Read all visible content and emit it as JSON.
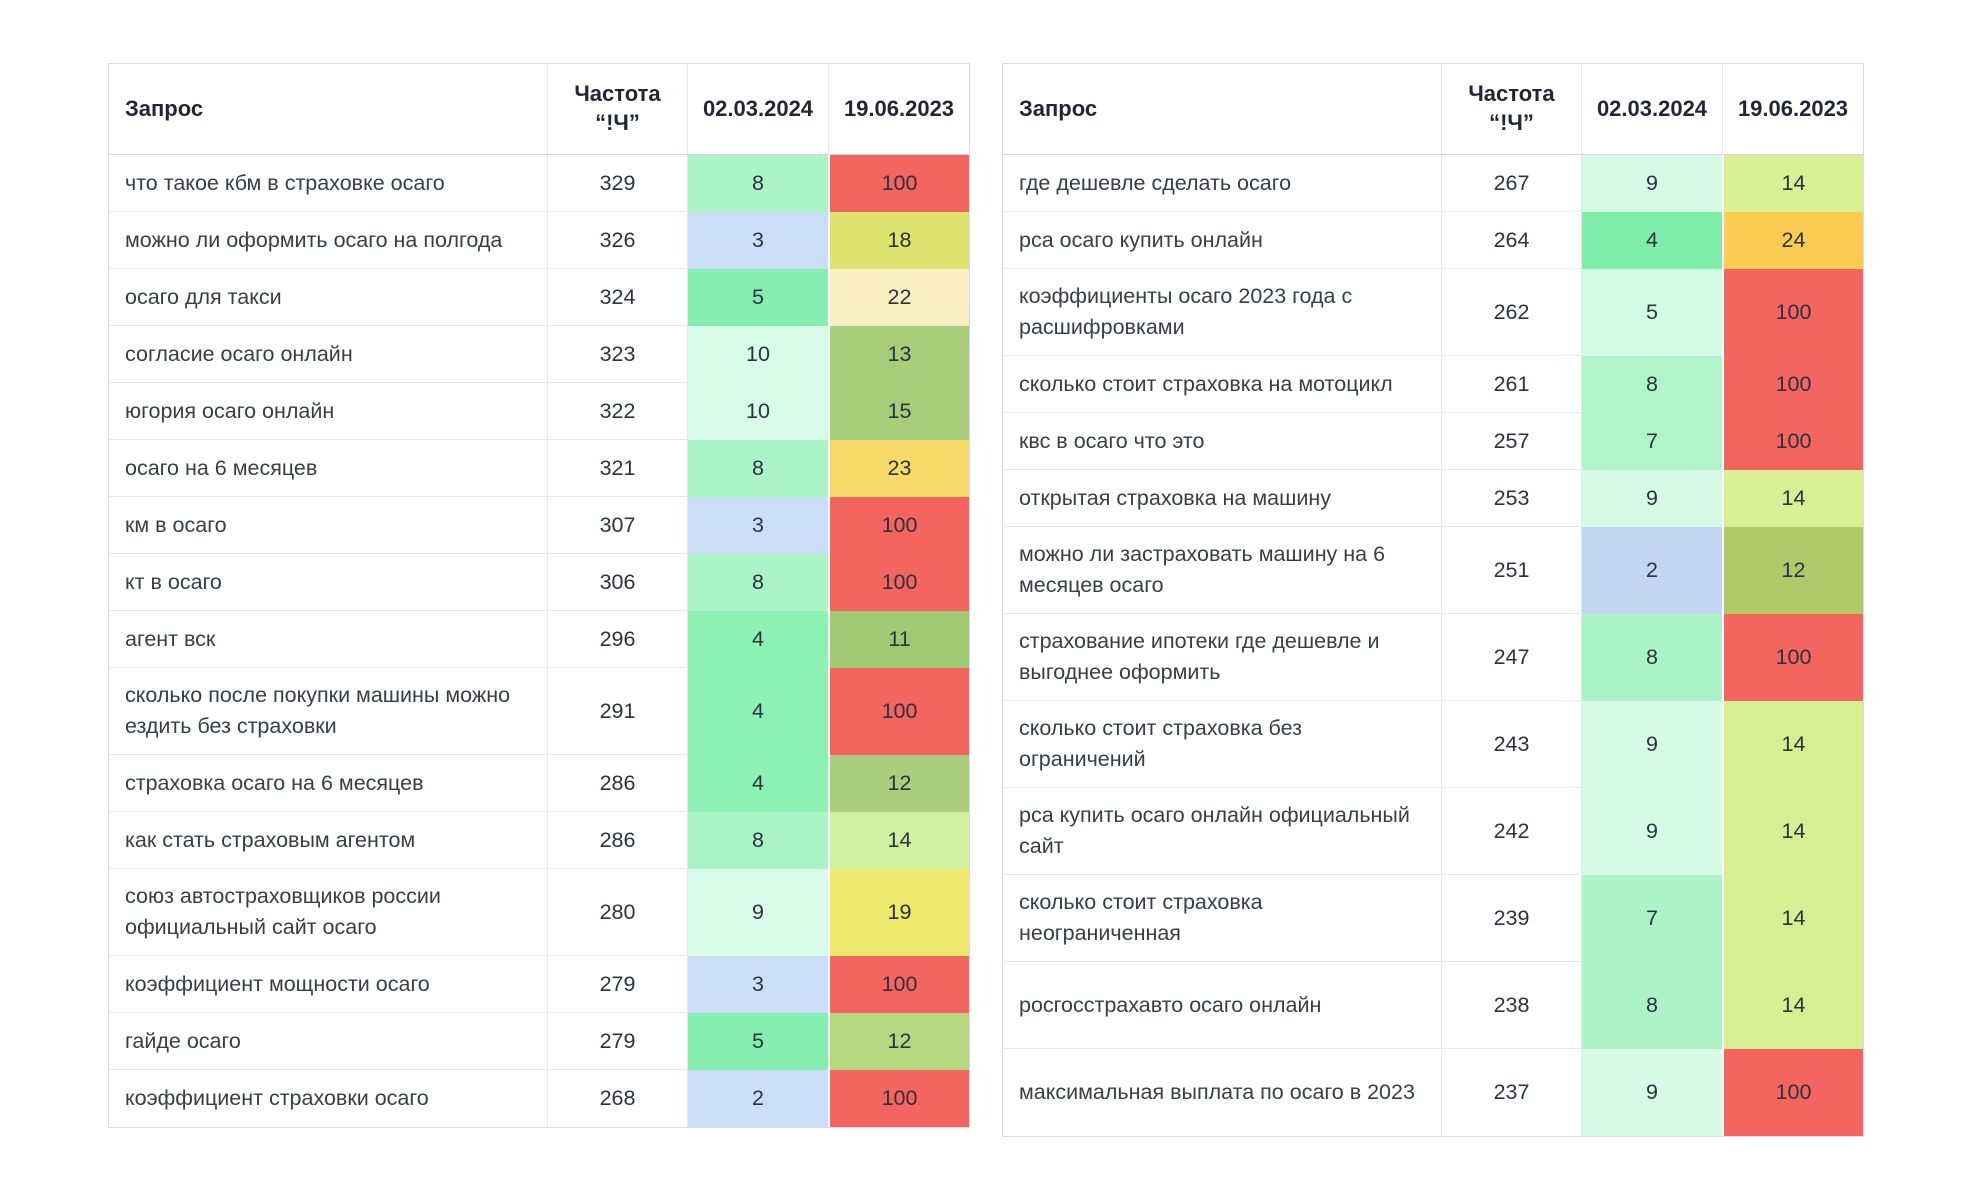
{
  "chart_data": [
    {
      "type": "table",
      "columns": [
        "Запрос",
        "Частота\n“!Ч”",
        "02.03.2024",
        "19.06.2023"
      ],
      "rows": [
        {
          "query": "что такое кбм в страховке осаго",
          "freq": "329",
          "d1": {
            "value": "8",
            "color": "#abf4c7"
          },
          "d2": {
            "value": "100",
            "color": "#f5655f"
          }
        },
        {
          "query": "можно ли оформить осаго на полгода",
          "freq": "326",
          "d1": {
            "value": "3",
            "color": "#ccddf8"
          },
          "d2": {
            "value": "18",
            "color": "#dee26e"
          }
        },
        {
          "query": "осаго для такси",
          "freq": "324",
          "d1": {
            "value": "5",
            "color": "#85efaf"
          },
          "d2": {
            "value": "22",
            "color": "#f9eec1"
          }
        },
        {
          "query": "согласие осаго онлайн",
          "freq": "323",
          "d1": {
            "value": "10",
            "color": "#d8fae8"
          },
          "d2": {
            "value": "13",
            "color": "#a7cc7a"
          }
        },
        {
          "query": "югория осаго онлайн",
          "freq": "322",
          "d1": {
            "value": "10",
            "color": "#d8fae8"
          },
          "d2": {
            "value": "15",
            "color": "#a7cc7a"
          }
        },
        {
          "query": "осаго на 6 месяцев",
          "freq": "321",
          "d1": {
            "value": "8",
            "color": "#abf4c7"
          },
          "d2": {
            "value": "23",
            "color": "#f8da6b"
          }
        },
        {
          "query": "км в осаго",
          "freq": "307",
          "d1": {
            "value": "3",
            "color": "#ccddf8"
          },
          "d2": {
            "value": "100",
            "color": "#f5655f"
          }
        },
        {
          "query": "кт в осаго",
          "freq": "306",
          "d1": {
            "value": "8",
            "color": "#abf4c7"
          },
          "d2": {
            "value": "100",
            "color": "#f5655f"
          }
        },
        {
          "query": "агент вск",
          "freq": "296",
          "d1": {
            "value": "4",
            "color": "#8df1b4"
          },
          "d2": {
            "value": "11",
            "color": "#a0c973"
          }
        },
        {
          "query": "сколько после покупки машины можно ездить без страховки",
          "freq": "291",
          "d1": {
            "value": "4",
            "color": "#8df1b4"
          },
          "d2": {
            "value": "100",
            "color": "#f5655f"
          }
        },
        {
          "query": "страховка осаго на 6 месяцев",
          "freq": "286",
          "d1": {
            "value": "4",
            "color": "#8df1b4"
          },
          "d2": {
            "value": "12",
            "color": "#a9ce7d"
          }
        },
        {
          "query": "как стать страховым агентом",
          "freq": "286",
          "d1": {
            "value": "8",
            "color": "#abf4c7"
          },
          "d2": {
            "value": "14",
            "color": "#cff0a0"
          }
        },
        {
          "query": "союз автостраховщиков россии официальный сайт осаго",
          "freq": "280",
          "d1": {
            "value": "9",
            "color": "#d8fae8"
          },
          "d2": {
            "value": "19",
            "color": "#ece96d"
          }
        },
        {
          "query": "коэффициент мощности осаго",
          "freq": "279",
          "d1": {
            "value": "3",
            "color": "#ccddf8"
          },
          "d2": {
            "value": "100",
            "color": "#f5655f"
          }
        },
        {
          "query": "гайде осаго",
          "freq": "279",
          "d1": {
            "value": "5",
            "color": "#85efaf"
          },
          "d2": {
            "value": "12",
            "color": "#b4d780"
          }
        },
        {
          "query": "коэффициент страховки осаго",
          "freq": "268",
          "d1": {
            "value": "2",
            "color": "#ccddf8"
          },
          "d2": {
            "value": "100",
            "color": "#f5655f"
          }
        }
      ]
    },
    {
      "type": "table",
      "columns": [
        "Запрос",
        "Частота\n“!Ч”",
        "02.03.2024",
        "19.06.2023"
      ],
      "rows": [
        {
          "query": "где дешевле сделать осаго",
          "freq": "267",
          "d1": {
            "value": "9",
            "color": "#d7fae7"
          },
          "d2": {
            "value": "14",
            "color": "#d7f093"
          }
        },
        {
          "query": "рса осаго купить онлайн",
          "freq": "264",
          "d1": {
            "value": "4",
            "color": "#7eeda9"
          },
          "d2": {
            "value": "24",
            "color": "#fbcb52"
          }
        },
        {
          "query": "коэффициенты осаго 2023 года с расшифровками",
          "freq": "262",
          "d1": {
            "value": "5",
            "color": "#d3fae4"
          },
          "d2": {
            "value": "100",
            "color": "#f5655f"
          }
        },
        {
          "query": "сколько стоит страховка на мотоцикл",
          "freq": "261",
          "d1": {
            "value": "8",
            "color": "#b0f5ca"
          },
          "d2": {
            "value": "100",
            "color": "#f5655f"
          }
        },
        {
          "query": "квс в осаго что это",
          "freq": "257",
          "d1": {
            "value": "7",
            "color": "#b0f5ca"
          },
          "d2": {
            "value": "100",
            "color": "#f5655f"
          }
        },
        {
          "query": "открытая страховка на машину",
          "freq": "253",
          "d1": {
            "value": "9",
            "color": "#d7fae7"
          },
          "d2": {
            "value": "14",
            "color": "#d7f093"
          }
        },
        {
          "query": "можно ли застраховать машину на 6 месяцев осаго",
          "freq": "251",
          "d1": {
            "value": "2",
            "color": "#c4d5f1"
          },
          "d2": {
            "value": "12",
            "color": "#b0ca6b"
          }
        },
        {
          "query": "страхование ипотеки где дешевле и выгоднее оформить",
          "freq": "247",
          "d1": {
            "value": "8",
            "color": "#aaf3c6"
          },
          "d2": {
            "value": "100",
            "color": "#f5655f"
          }
        },
        {
          "query": "сколько стоит страховка без ограничений",
          "freq": "243",
          "d1": {
            "value": "9",
            "color": "#d5fae6"
          },
          "d2": {
            "value": "14",
            "color": "#d7ef93"
          }
        },
        {
          "query": "рса купить осаго онлайн официальный сайт",
          "freq": "242",
          "d1": {
            "value": "9",
            "color": "#d5fae6"
          },
          "d2": {
            "value": "14",
            "color": "#d7ef93"
          }
        },
        {
          "query": "сколько стоит страховка неограниченная",
          "freq": "239",
          "d1": {
            "value": "7",
            "color": "#acf4c7"
          },
          "d2": {
            "value": "14",
            "color": "#d7ef93"
          }
        },
        {
          "query": "росгосстрахавто осаго онлайн",
          "freq": "238",
          "d1": {
            "value": "8",
            "color": "#acf4c7"
          },
          "d2": {
            "value": "14",
            "color": "#d7ef93"
          }
        },
        {
          "query": "максимальная выплата по осаго в 2023",
          "freq": "237",
          "d1": {
            "value": "9",
            "color": "#d6fae6"
          },
          "d2": {
            "value": "100",
            "color": "#f5655f"
          }
        }
      ]
    }
  ]
}
